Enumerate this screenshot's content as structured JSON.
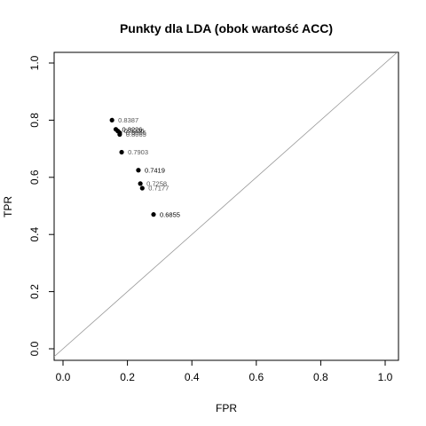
{
  "chart_data": {
    "type": "scatter",
    "title": "Punkty dla LDA (obok wartość ACC)",
    "xlabel": "FPR",
    "ylabel": "TPR",
    "xlim": [
      0,
      1
    ],
    "ylim": [
      0,
      1
    ],
    "x_ticks": [
      "0.0",
      "0.2",
      "0.4",
      "0.6",
      "0.8",
      "1.0"
    ],
    "y_ticks": [
      "0.0",
      "0.2",
      "0.4",
      "0.6",
      "0.8",
      "1.0"
    ],
    "reference_line": "diagonal y = x",
    "grid": false,
    "points": [
      {
        "x": 0.152,
        "y": 0.8,
        "label": "0.8387",
        "label_color": "#555555"
      },
      {
        "x": 0.164,
        "y": 0.768,
        "label": "0.8226",
        "label_color": "#000000"
      },
      {
        "x": 0.17,
        "y": 0.762,
        "label": "0.8226",
        "label_color": "#333333"
      },
      {
        "x": 0.176,
        "y": 0.756,
        "label": "0.8065",
        "label_color": "#444444"
      },
      {
        "x": 0.176,
        "y": 0.75,
        "label": "0.8065",
        "label_color": "#555555"
      },
      {
        "x": 0.182,
        "y": 0.688,
        "label": "0.7903",
        "label_color": "#555555"
      },
      {
        "x": 0.234,
        "y": 0.625,
        "label": "0.7419",
        "label_color": "#000000"
      },
      {
        "x": 0.24,
        "y": 0.578,
        "label": "0.7258",
        "label_color": "#555555"
      },
      {
        "x": 0.246,
        "y": 0.562,
        "label": "0.7177",
        "label_color": "#555555"
      },
      {
        "x": 0.281,
        "y": 0.47,
        "label": "0.6855",
        "label_color": "#000000"
      }
    ]
  }
}
